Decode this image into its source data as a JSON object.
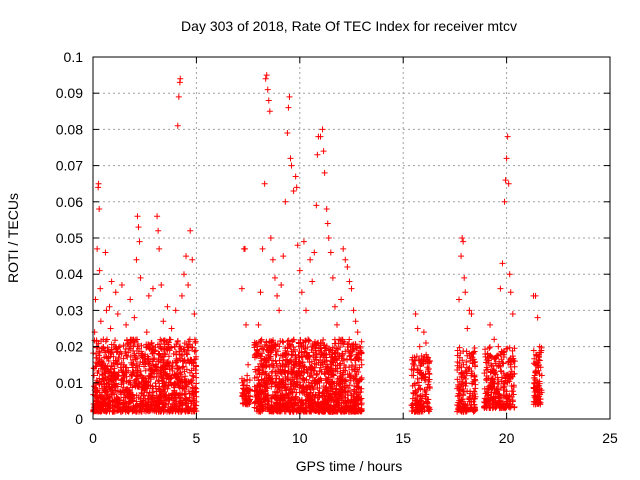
{
  "chart_data": {
    "type": "scatter",
    "title": "Day 303 of 2018, Rate Of TEC Index for receiver mtcv",
    "xlabel": "GPS time / hours",
    "ylabel": "ROTI / TECUs",
    "xlim": [
      0,
      25
    ],
    "ylim": [
      0,
      0.1
    ],
    "xticks": [
      0,
      5,
      10,
      15,
      20,
      25
    ],
    "xtick_labels": [
      "0",
      "5",
      "10",
      "15",
      "20",
      "25"
    ],
    "yticks": [
      0,
      0.01,
      0.02,
      0.03,
      0.04,
      0.05,
      0.06,
      0.07,
      0.08,
      0.09,
      0.1
    ],
    "ytick_labels": [
      "0",
      "0.01",
      "0.02",
      "0.03",
      "0.04",
      "0.05",
      "0.06",
      "0.07",
      "0.08",
      "0.09",
      "0.1"
    ],
    "grid": true,
    "marker": "+",
    "color": "#ff0000",
    "series": [
      {
        "name": "mtcv",
        "points": [
          [
            0.05,
            0.012
          ],
          [
            0.08,
            0.024
          ],
          [
            0.12,
            0.033
          ],
          [
            0.15,
            0.018
          ],
          [
            0.2,
            0.047
          ],
          [
            0.22,
            0.008
          ],
          [
            0.25,
            0.064
          ],
          [
            0.27,
            0.065
          ],
          [
            0.3,
            0.058
          ],
          [
            0.32,
            0.041
          ],
          [
            0.35,
            0.036
          ],
          [
            0.38,
            0.027
          ],
          [
            0.4,
            0.016
          ],
          [
            0.45,
            0.011
          ],
          [
            0.5,
            0.022
          ],
          [
            0.55,
            0.009
          ],
          [
            0.6,
            0.046
          ],
          [
            0.65,
            0.03
          ],
          [
            0.7,
            0.019
          ],
          [
            0.8,
            0.031
          ],
          [
            0.85,
            0.025
          ],
          [
            0.9,
            0.038
          ],
          [
            1.0,
            0.013
          ],
          [
            1.1,
            0.035
          ],
          [
            1.2,
            0.029
          ],
          [
            1.3,
            0.02
          ],
          [
            1.4,
            0.037
          ],
          [
            1.5,
            0.015
          ],
          [
            1.6,
            0.026
          ],
          [
            1.7,
            0.021
          ],
          [
            1.8,
            0.033
          ],
          [
            1.9,
            0.012
          ],
          [
            2.0,
            0.028
          ],
          [
            2.1,
            0.044
          ],
          [
            2.15,
            0.056
          ],
          [
            2.2,
            0.053
          ],
          [
            2.25,
            0.049
          ],
          [
            2.3,
            0.039
          ],
          [
            2.4,
            0.017
          ],
          [
            2.5,
            0.009
          ],
          [
            2.6,
            0.024
          ],
          [
            2.7,
            0.034
          ],
          [
            2.8,
            0.011
          ],
          [
            2.9,
            0.036
          ],
          [
            3.0,
            0.019
          ],
          [
            3.1,
            0.056
          ],
          [
            3.15,
            0.052
          ],
          [
            3.2,
            0.047
          ],
          [
            3.3,
            0.037
          ],
          [
            3.4,
            0.027
          ],
          [
            3.5,
            0.014
          ],
          [
            3.6,
            0.031
          ],
          [
            3.7,
            0.022
          ],
          [
            3.8,
            0.025
          ],
          [
            3.9,
            0.018
          ],
          [
            4.0,
            0.03
          ],
          [
            4.1,
            0.081
          ],
          [
            4.15,
            0.089
          ],
          [
            4.2,
            0.093
          ],
          [
            4.22,
            0.094
          ],
          [
            4.3,
            0.034
          ],
          [
            4.4,
            0.04
          ],
          [
            4.5,
            0.045
          ],
          [
            4.6,
            0.037
          ],
          [
            4.7,
            0.052
          ],
          [
            4.8,
            0.044
          ],
          [
            4.9,
            0.029
          ],
          [
            4.95,
            0.021
          ],
          [
            7.2,
            0.036
          ],
          [
            7.3,
            0.047
          ],
          [
            7.35,
            0.047
          ],
          [
            7.4,
            0.026
          ],
          [
            7.5,
            0.015
          ],
          [
            7.6,
            0.008
          ],
          [
            7.9,
            0.021
          ],
          [
            8.0,
            0.026
          ],
          [
            8.1,
            0.035
          ],
          [
            8.2,
            0.047
          ],
          [
            8.3,
            0.065
          ],
          [
            8.35,
            0.094
          ],
          [
            8.4,
            0.095
          ],
          [
            8.45,
            0.091
          ],
          [
            8.5,
            0.088
          ],
          [
            8.55,
            0.085
          ],
          [
            8.6,
            0.05
          ],
          [
            8.7,
            0.044
          ],
          [
            8.8,
            0.039
          ],
          [
            8.9,
            0.034
          ],
          [
            9.0,
            0.03
          ],
          [
            9.1,
            0.037
          ],
          [
            9.2,
            0.045
          ],
          [
            9.3,
            0.06
          ],
          [
            9.4,
            0.079
          ],
          [
            9.45,
            0.086
          ],
          [
            9.5,
            0.089
          ],
          [
            9.55,
            0.072
          ],
          [
            9.6,
            0.07
          ],
          [
            9.7,
            0.063
          ],
          [
            9.8,
            0.067
          ],
          [
            9.85,
            0.064
          ],
          [
            9.9,
            0.048
          ],
          [
            10.0,
            0.041
          ],
          [
            10.1,
            0.035
          ],
          [
            10.2,
            0.049
          ],
          [
            10.3,
            0.03
          ],
          [
            10.4,
            0.022
          ],
          [
            10.5,
            0.044
          ],
          [
            10.6,
            0.038
          ],
          [
            10.7,
            0.046
          ],
          [
            10.8,
            0.059
          ],
          [
            10.85,
            0.073
          ],
          [
            10.9,
            0.078
          ],
          [
            11.0,
            0.078
          ],
          [
            11.1,
            0.08
          ],
          [
            11.15,
            0.074
          ],
          [
            11.2,
            0.068
          ],
          [
            11.3,
            0.058
          ],
          [
            11.35,
            0.054
          ],
          [
            11.4,
            0.05
          ],
          [
            11.5,
            0.046
          ],
          [
            11.6,
            0.039
          ],
          [
            11.7,
            0.031
          ],
          [
            11.8,
            0.026
          ],
          [
            11.9,
            0.022
          ],
          [
            12.0,
            0.033
          ],
          [
            12.1,
            0.047
          ],
          [
            12.2,
            0.044
          ],
          [
            12.3,
            0.042
          ],
          [
            12.4,
            0.038
          ],
          [
            12.5,
            0.036
          ],
          [
            12.6,
            0.03
          ],
          [
            12.7,
            0.027
          ],
          [
            12.8,
            0.024
          ],
          [
            12.9,
            0.02
          ],
          [
            15.5,
            0.012
          ],
          [
            15.6,
            0.029
          ],
          [
            15.7,
            0.025
          ],
          [
            15.8,
            0.02
          ],
          [
            15.9,
            0.016
          ],
          [
            16.0,
            0.024
          ],
          [
            16.1,
            0.021
          ],
          [
            16.2,
            0.017
          ],
          [
            17.7,
            0.033
          ],
          [
            17.8,
            0.045
          ],
          [
            17.85,
            0.05
          ],
          [
            17.9,
            0.049
          ],
          [
            17.95,
            0.039
          ],
          [
            18.0,
            0.035
          ],
          [
            18.1,
            0.025
          ],
          [
            18.2,
            0.03
          ],
          [
            18.3,
            0.029
          ],
          [
            18.4,
            0.018
          ],
          [
            19.2,
            0.026
          ],
          [
            19.4,
            0.022
          ],
          [
            19.6,
            0.02
          ],
          [
            19.7,
            0.036
          ],
          [
            19.8,
            0.043
          ],
          [
            19.9,
            0.06
          ],
          [
            19.95,
            0.066
          ],
          [
            20.0,
            0.072
          ],
          [
            20.05,
            0.078
          ],
          [
            20.1,
            0.065
          ],
          [
            20.15,
            0.04
          ],
          [
            20.2,
            0.035
          ],
          [
            20.3,
            0.029
          ],
          [
            20.4,
            0.016
          ],
          [
            21.3,
            0.034
          ],
          [
            21.4,
            0.034
          ],
          [
            21.5,
            0.028
          ],
          [
            21.6,
            0.02
          ],
          [
            21.7,
            0.012
          ]
        ],
        "dense_bands": [
          {
            "x": [
              0.0,
              5.0
            ],
            "y": [
              0.002,
              0.022
            ],
            "count": 1200
          },
          {
            "x": [
              7.2,
              7.6
            ],
            "y": [
              0.004,
              0.012
            ],
            "count": 60
          },
          {
            "x": [
              7.8,
              13.0
            ],
            "y": [
              0.002,
              0.022
            ],
            "count": 1400
          },
          {
            "x": [
              15.4,
              16.3
            ],
            "y": [
              0.002,
              0.018
            ],
            "count": 160
          },
          {
            "x": [
              17.6,
              18.5
            ],
            "y": [
              0.002,
              0.02
            ],
            "count": 170
          },
          {
            "x": [
              18.9,
              20.4
            ],
            "y": [
              0.003,
              0.02
            ],
            "count": 280
          },
          {
            "x": [
              21.3,
              21.7
            ],
            "y": [
              0.004,
              0.02
            ],
            "count": 90
          }
        ]
      }
    ]
  }
}
